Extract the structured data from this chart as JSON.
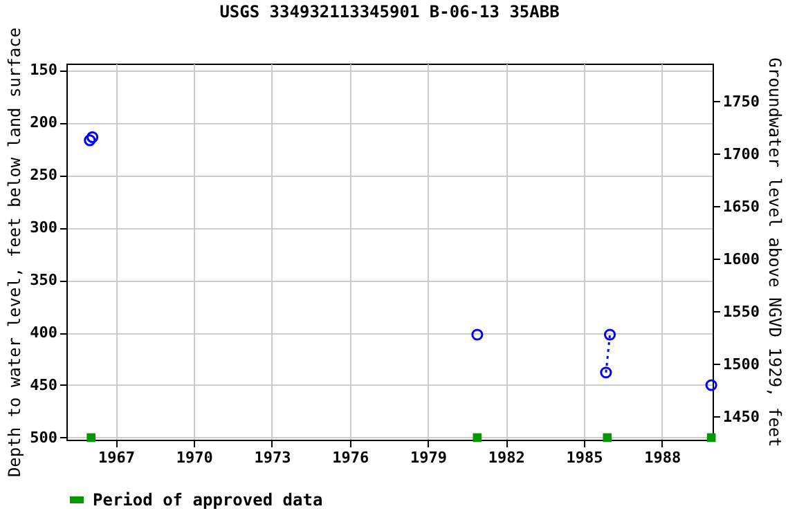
{
  "chart_data": {
    "type": "line",
    "title": "USGS 334932113345901 B-06-13 35ABB",
    "xlabel": null,
    "ylabel": "Depth to water level, feet below land surface",
    "y2label": "Groundwater level above NGVD 1929, feet",
    "xlim": [
      1965.1,
      1989.95
    ],
    "xticks": [
      1967,
      1970,
      1973,
      1976,
      1979,
      1982,
      1985,
      1988
    ],
    "ylim": [
      502,
      144
    ],
    "yticks": [
      150,
      200,
      250,
      300,
      350,
      400,
      450,
      500
    ],
    "y2lim": [
      1428,
      1786
    ],
    "y2ticks": [
      1450,
      1500,
      1550,
      1600,
      1650,
      1700,
      1750
    ],
    "grid": true,
    "legend": "bottom",
    "series": [
      {
        "type": "line",
        "color": "#0000ff",
        "marker": "circle",
        "line_style": "dotted",
        "x": [
          1966.0,
          1966.05,
          1966.1,
          1975.0,
          1980.9,
          1983.0,
          1985.85,
          1986.0,
          1988.0,
          1989.9
        ],
        "values": [
          217,
          null,
          214,
          null,
          402,
          null,
          438,
          402,
          null,
          450
        ]
      },
      {
        "type": "scatter",
        "name": "Period of approved data",
        "color": "#009900",
        "marker": "square",
        "x": [
          1966.05,
          1980.9,
          1985.9,
          1989.9
        ],
        "values": [
          500,
          500,
          500,
          500
        ]
      }
    ]
  }
}
